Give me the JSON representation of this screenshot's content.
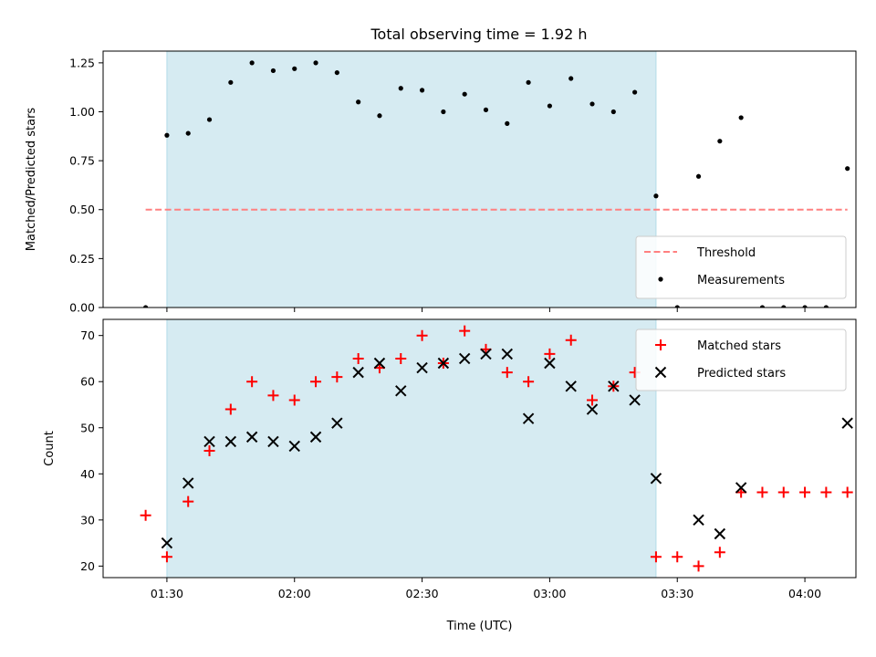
{
  "title": "Total observing time = 1.92 h",
  "colors": {
    "span": "#add8e6",
    "threshold": "#ff8080",
    "measurement": "#000000",
    "matched": "#ff0000",
    "predicted": "#000000"
  },
  "chart_data": [
    {
      "type": "scatter",
      "ylabel": "Matched/Predicted stars",
      "xlim": [
        "01:15",
        "04:12"
      ],
      "ylim": [
        0,
        1.31
      ],
      "yticks": [
        "0.00",
        "0.25",
        "0.50",
        "0.75",
        "1.00",
        "1.25"
      ],
      "shaded_span": [
        "01:30",
        "03:25"
      ],
      "threshold": {
        "name": "Threshold",
        "value": 0.5,
        "x": [
          "01:25",
          "04:10"
        ]
      },
      "legend": {
        "placement": "lower-right",
        "entries": [
          "Threshold",
          "Measurements"
        ]
      },
      "series": [
        {
          "name": "Measurements",
          "x": [
            "01:25",
            "01:30",
            "01:35",
            "01:40",
            "01:45",
            "01:50",
            "01:55",
            "02:00",
            "02:05",
            "02:10",
            "02:15",
            "02:20",
            "02:25",
            "02:30",
            "02:35",
            "02:40",
            "02:45",
            "02:50",
            "02:55",
            "03:00",
            "03:05",
            "03:10",
            "03:15",
            "03:20",
            "03:25",
            "03:30",
            "03:35",
            "03:40",
            "03:45",
            "03:50",
            "03:55",
            "04:00",
            "04:05",
            "04:10"
          ],
          "values": [
            0.0,
            0.88,
            0.89,
            0.96,
            1.15,
            1.25,
            1.21,
            1.22,
            1.25,
            1.2,
            1.05,
            0.98,
            1.12,
            1.11,
            1.0,
            1.09,
            1.01,
            0.94,
            1.15,
            1.03,
            1.17,
            1.04,
            1.0,
            1.1,
            0.57,
            0.0,
            0.67,
            0.85,
            0.97,
            0.0,
            0.0,
            0.0,
            0.0,
            0.71
          ]
        }
      ]
    },
    {
      "type": "scatter",
      "xlabel": "Time (UTC)",
      "ylabel": "Count",
      "xlim": [
        "01:15",
        "04:12"
      ],
      "ylim": [
        17.5,
        73.5
      ],
      "yticks": [
        "20",
        "30",
        "40",
        "50",
        "60",
        "70"
      ],
      "xticks": [
        "01:30",
        "02:00",
        "02:30",
        "03:00",
        "03:30",
        "04:00"
      ],
      "shaded_span": [
        "01:30",
        "03:25"
      ],
      "legend": {
        "placement": "upper-right",
        "entries": [
          "Matched stars",
          "Predicted stars"
        ]
      },
      "series": [
        {
          "name": "Matched stars",
          "marker": "+",
          "x": [
            "01:25",
            "01:30",
            "01:35",
            "01:40",
            "01:45",
            "01:50",
            "01:55",
            "02:00",
            "02:05",
            "02:10",
            "02:15",
            "02:20",
            "02:25",
            "02:30",
            "02:35",
            "02:40",
            "02:45",
            "02:50",
            "02:55",
            "03:00",
            "03:05",
            "03:10",
            "03:15",
            "03:20",
            "03:25",
            "03:30",
            "03:35",
            "03:40",
            "03:45",
            "03:50",
            "03:55",
            "04:00",
            "04:05",
            "04:10"
          ],
          "values": [
            31,
            22,
            34,
            45,
            54,
            60,
            57,
            56,
            60,
            61,
            65,
            63,
            65,
            70,
            64,
            71,
            67,
            62,
            60,
            66,
            69,
            56,
            59,
            62,
            22,
            22,
            20,
            23,
            36,
            36,
            36,
            36,
            36,
            36
          ]
        },
        {
          "name": "Predicted stars",
          "marker": "x",
          "x": [
            "01:30",
            "01:35",
            "01:40",
            "01:45",
            "01:50",
            "01:55",
            "02:00",
            "02:05",
            "02:10",
            "02:15",
            "02:20",
            "02:25",
            "02:30",
            "02:35",
            "02:40",
            "02:45",
            "02:50",
            "02:55",
            "03:00",
            "03:05",
            "03:10",
            "03:15",
            "03:20",
            "03:25",
            "03:35",
            "03:40",
            "03:45",
            "04:10"
          ],
          "values": [
            25,
            38,
            47,
            47,
            48,
            47,
            46,
            48,
            51,
            62,
            64,
            58,
            63,
            64,
            65,
            66,
            66,
            52,
            64,
            59,
            54,
            59,
            56,
            39,
            30,
            27,
            37,
            51
          ]
        }
      ]
    }
  ]
}
